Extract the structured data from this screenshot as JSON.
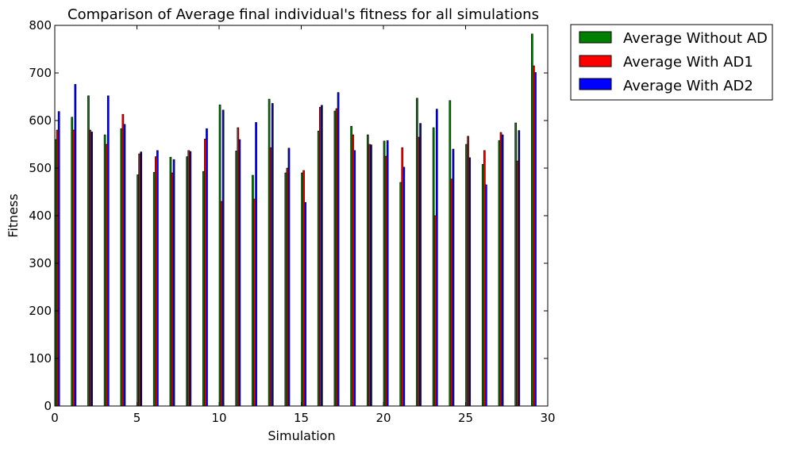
{
  "chart_data": {
    "type": "bar",
    "title": "Comparison of Average final individual's fitness for all simulations",
    "xlabel": "Simulation",
    "ylabel": "Fitness",
    "xlim": [
      0,
      30
    ],
    "ylim": [
      0,
      800
    ],
    "xticks": [
      0,
      5,
      10,
      15,
      20,
      25,
      30
    ],
    "yticks": [
      0,
      100,
      200,
      300,
      400,
      500,
      600,
      700,
      800
    ],
    "grid": false,
    "legend_position": "outside-top-right",
    "x": [
      0,
      1,
      2,
      3,
      4,
      5,
      6,
      7,
      8,
      9,
      10,
      11,
      12,
      13,
      14,
      15,
      16,
      17,
      18,
      19,
      20,
      21,
      22,
      23,
      24,
      25,
      26,
      27,
      28,
      29
    ],
    "series": [
      {
        "name": "Average Without AD",
        "color": "#008000",
        "values": [
          560,
          607,
          652,
          570,
          583,
          486,
          491,
          523,
          524,
          493,
          633,
          536,
          485,
          645,
          490,
          490,
          578,
          620,
          588,
          570,
          557,
          470,
          647,
          585,
          642,
          550,
          508,
          558,
          595,
          782
        ]
      },
      {
        "name": "Average With AD1",
        "color": "#ff0000",
        "values": [
          580,
          580,
          580,
          550,
          613,
          530,
          524,
          490,
          537,
          561,
          430,
          585,
          435,
          543,
          500,
          495,
          628,
          625,
          570,
          550,
          525,
          543,
          565,
          400,
          477,
          567,
          537,
          575,
          515,
          715
        ]
      },
      {
        "name": "Average With AD2",
        "color": "#0000ff",
        "values": [
          619,
          676,
          576,
          652,
          592,
          534,
          537,
          518,
          535,
          583,
          622,
          560,
          596,
          636,
          542,
          428,
          632,
          659,
          537,
          549,
          558,
          502,
          594,
          624,
          540,
          522,
          465,
          570,
          579,
          701
        ]
      }
    ]
  }
}
